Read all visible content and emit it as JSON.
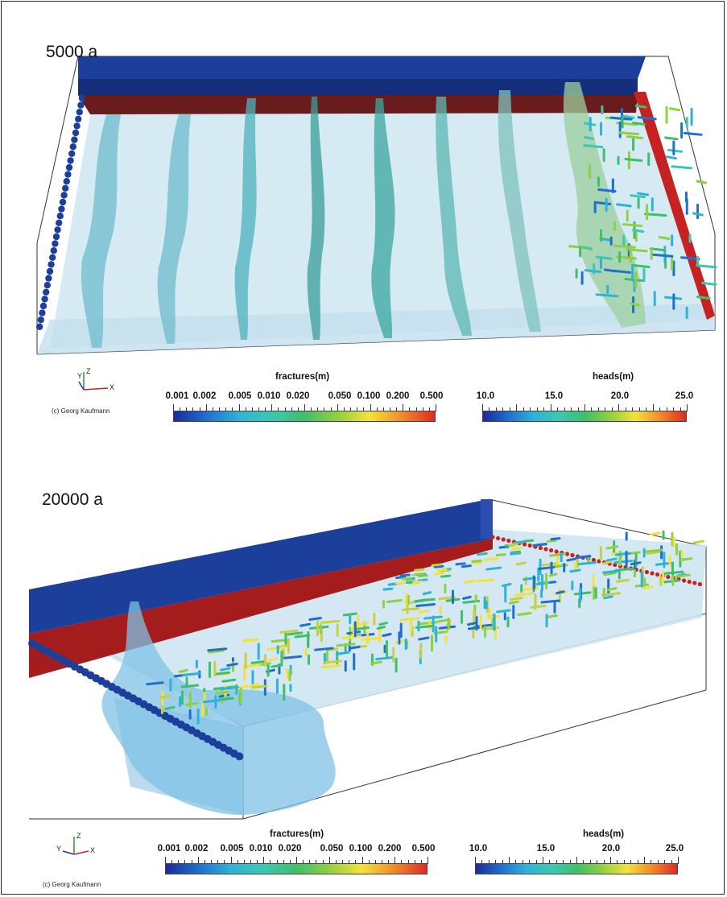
{
  "panels": [
    {
      "time_label": "5000 a",
      "fractures": {
        "title": "fractures(m)",
        "ticks": [
          "0.001",
          "0.002",
          "0.005",
          "0.010",
          "0.020",
          "0.050",
          "0.100",
          "0.200",
          "0.500"
        ]
      },
      "heads": {
        "title": "heads(m)",
        "ticks": [
          "10.0",
          "15.0",
          "20.0",
          "25.0"
        ]
      },
      "axes": {
        "z": "Z",
        "y": "Y",
        "x": "X"
      },
      "credit": "(c) Georg Kaufmann"
    },
    {
      "time_label": "20000 a",
      "fractures": {
        "title": "fractures(m)",
        "ticks": [
          "0.001",
          "0.002",
          "0.005",
          "0.010",
          "0.020",
          "0.050",
          "0.100",
          "0.200",
          "0.500"
        ]
      },
      "heads": {
        "title": "heads(m)",
        "ticks": [
          "10.0",
          "15.0",
          "20.0",
          "25.0"
        ]
      },
      "axes": {
        "z": "Z",
        "y": "Y",
        "x": "X"
      },
      "credit": "(c) Georg Kaufmann"
    }
  ],
  "colors": {
    "wall_blue": "#1b3f9a",
    "wall_red": "#a51c1c",
    "water": "#cfe6f2",
    "fracture_cmap": [
      "#1a2a9c",
      "#1f6fd0",
      "#2fb2d8",
      "#3cc8b0",
      "#3fbf6a",
      "#8fd040",
      "#f2e23a",
      "#f28a2a",
      "#e02a24"
    ],
    "heads_cmap": [
      "#1a2a9c",
      "#1f6fd0",
      "#2fb2d8",
      "#3cc8b0",
      "#3fbf6a",
      "#8fd040",
      "#f2e23a",
      "#f28a2a",
      "#e02a24"
    ]
  }
}
